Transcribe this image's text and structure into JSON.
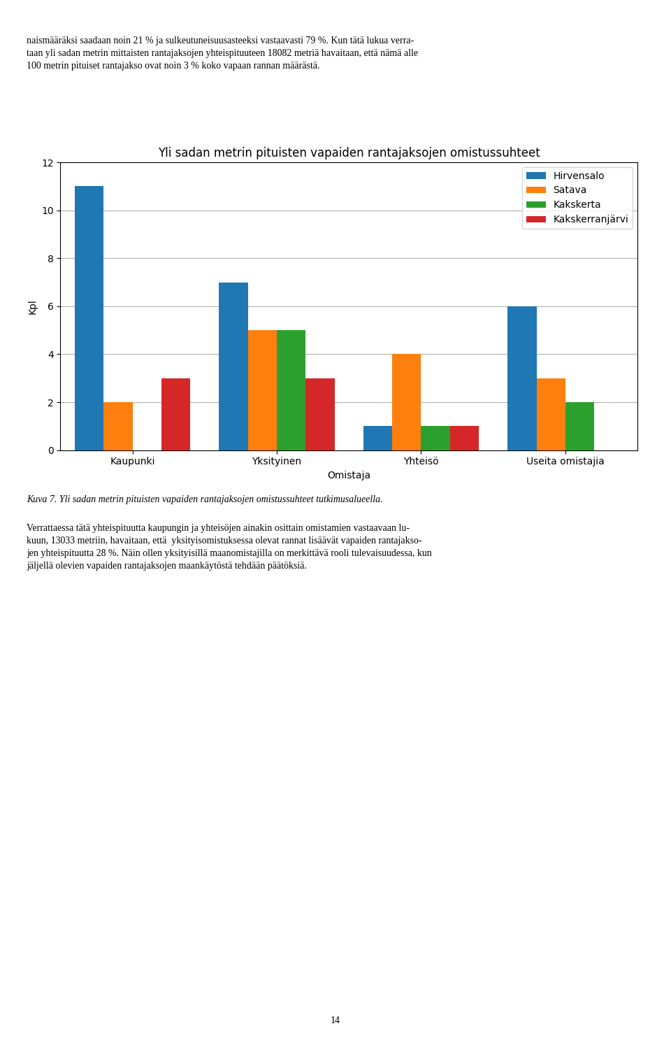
{
  "chart_data": {
    "type": "bar",
    "title": "Yli sadan metrin pituisten vapaiden rantajaksojen omistussuhteet",
    "categories": [
      "Kaupunki",
      "Yksityinen",
      "Yhteisö",
      "Useita omistajia"
    ],
    "xlabel": "Omistaja",
    "ylabel": "Kpl",
    "ylim": [
      0,
      12
    ],
    "yticks": [
      0,
      2,
      4,
      6,
      8,
      10,
      12
    ],
    "series": [
      {
        "name": "Hirvensalo",
        "values": [
          11,
          7,
          1,
          6
        ]
      },
      {
        "name": "Satava",
        "values": [
          2,
          5,
          4,
          3
        ]
      },
      {
        "name": "Kakskerta",
        "values": [
          0,
          5,
          1,
          2
        ]
      },
      {
        "name": "Kakskerranjärvi",
        "values": [
          3,
          3,
          1,
          0
        ]
      }
    ],
    "grid": true,
    "legend": "upper right",
    "annotations": [
      "naismääräksi saadaan noin 21 % ja sulkeutuneisuusasteeksi vastaavasti 79 %. Kun tätä lukua verra-\ntaan yli sadan metrin mittaisten rantajaksojen yhteispituuteen 18082 metriä havaitaan, että nämä alle\n100 metrin pituiset rantajakso ovat noin 3 % koko vapaan rannan määrästä.",
      "Kuva 7. Yli sadan metrin pituisten vapaiden rantajaksojen omistussuhteet tutkimusalueella.",
      "Verrattaessa tätä yhteispituutta kaupungin ja yhteisöjen ainakin osittain omistamien vastaavaan lu-\nkuun, 13033 metriin, havaitaan, että  yksityisomistuksessa olevat rannat lisäävät vapaiden rantajakso-\njen yhteispituutta 28 %. Näin ollen yksityisillä maanomistajilla on merkittävä rooli tulevaisuudessa, kun\njäljellä olevien vapaiden rantajaksojen maankäytöstä tehdään päätöksiä.",
      "14"
    ]
  }
}
